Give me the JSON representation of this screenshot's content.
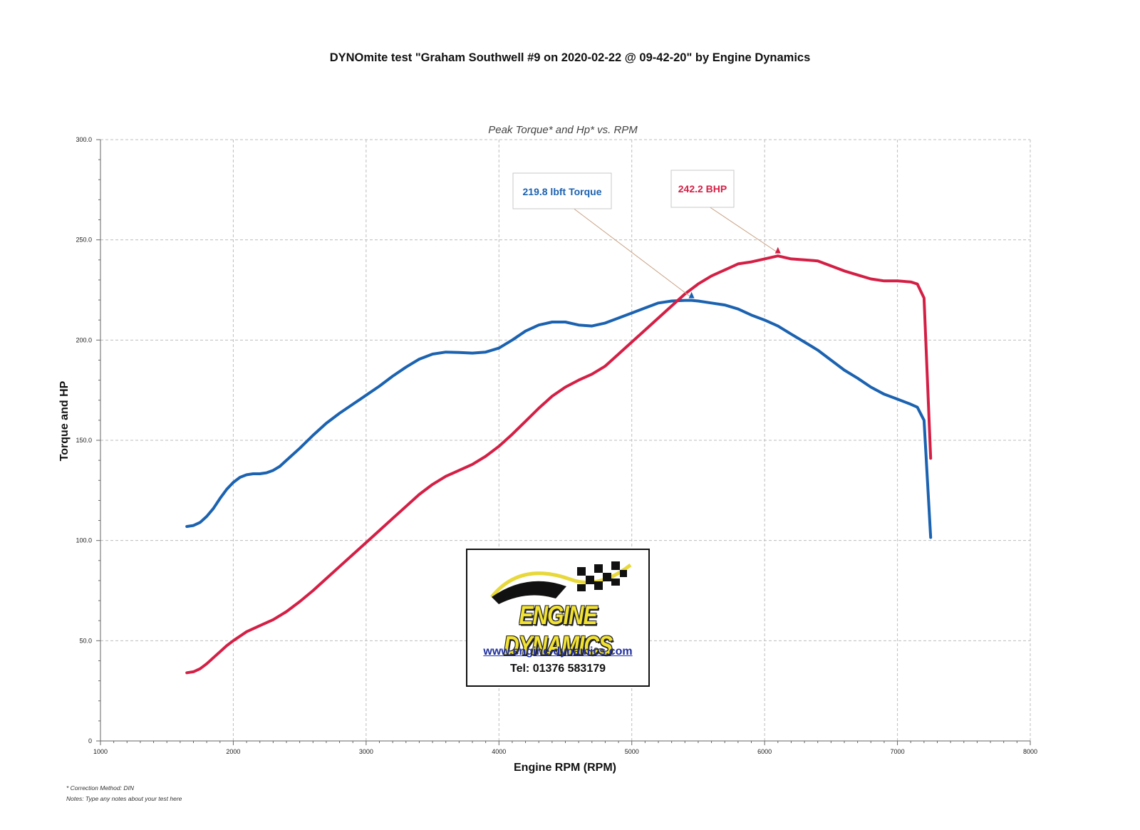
{
  "title": "DYNOmite test \"Graham Southwell #9 on 2020-02-22 @ 09-42-20\" by Engine Dynamics",
  "footnotes": {
    "correction": "* Correction Method: DIN",
    "notes": "Notes: Type any notes about your test here"
  },
  "logo": {
    "name": "ENGINE DYNAMICS",
    "website": "www.engine-dynamics.com",
    "tel": "Tel: 01376 583179"
  },
  "colors": {
    "torque": "#1b62b0",
    "hp": "#d41f45",
    "grid": "#bdbdbd"
  },
  "chart_data": {
    "type": "line",
    "title": "Peak Torque* and Hp* vs. RPM",
    "xlabel": "Engine RPM (RPM)",
    "ylabel": "Torque and HP",
    "xlim": [
      1000,
      8000
    ],
    "ylim": [
      0,
      300
    ],
    "xticks": [
      1000,
      2000,
      3000,
      4000,
      5000,
      6000,
      7000,
      8000
    ],
    "xtick_labels": [
      "1000",
      "2000",
      "3000",
      "4000",
      "5000",
      "6000",
      "7000",
      "8000"
    ],
    "yticks": [
      0,
      50,
      100,
      150,
      200,
      250,
      300
    ],
    "ytick_labels": [
      "0",
      "50.0",
      "100.0",
      "150.0",
      "200.0",
      "250.0",
      "300.0"
    ],
    "grid": true,
    "series": [
      {
        "key": "torque",
        "x": [
          1650,
          1700,
          1750,
          1800,
          1850,
          1900,
          1950,
          2000,
          2050,
          2100,
          2150,
          2200,
          2250,
          2300,
          2350,
          2400,
          2500,
          2600,
          2700,
          2800,
          2900,
          3000,
          3100,
          3200,
          3300,
          3400,
          3500,
          3600,
          3700,
          3800,
          3900,
          4000,
          4100,
          4200,
          4300,
          4400,
          4500,
          4600,
          4700,
          4800,
          4900,
          5000,
          5100,
          5200,
          5300,
          5400,
          5450,
          5500,
          5600,
          5700,
          5800,
          5900,
          6000,
          6100,
          6200,
          6300,
          6400,
          6500,
          6600,
          6700,
          6800,
          6900,
          7000,
          7100,
          7150,
          7200,
          7250
        ],
        "values": [
          107,
          107.5,
          109,
          112,
          116,
          121,
          125.5,
          129,
          131.5,
          132.8,
          133.3,
          133.3,
          133.8,
          135,
          137,
          140,
          146,
          152.5,
          158.5,
          163.5,
          168,
          172.5,
          177,
          182,
          186.5,
          190.5,
          193,
          194,
          193.8,
          193.5,
          194,
          196,
          200,
          204.5,
          207.5,
          209,
          209,
          207.5,
          207,
          208.5,
          211,
          213.5,
          216,
          218.5,
          219.5,
          219.8,
          219.8,
          219.5,
          218.5,
          217.5,
          215.5,
          212.5,
          210,
          207,
          203,
          199,
          195,
          190,
          185,
          181,
          176.5,
          173,
          170.5,
          168,
          166.5,
          160,
          101.5
        ]
      },
      {
        "key": "hp",
        "x": [
          1650,
          1700,
          1750,
          1800,
          1850,
          1900,
          1950,
          2000,
          2100,
          2200,
          2300,
          2400,
          2500,
          2600,
          2700,
          2800,
          2900,
          3000,
          3100,
          3200,
          3300,
          3400,
          3500,
          3600,
          3700,
          3800,
          3900,
          4000,
          4100,
          4200,
          4300,
          4400,
          4500,
          4600,
          4700,
          4800,
          4900,
          5000,
          5100,
          5200,
          5300,
          5400,
          5500,
          5600,
          5700,
          5800,
          5900,
          6000,
          6100,
          6200,
          6300,
          6400,
          6500,
          6600,
          6700,
          6800,
          6900,
          7000,
          7100,
          7150,
          7200,
          7250
        ],
        "values": [
          34,
          34.5,
          36,
          38.5,
          41.5,
          44.5,
          47.5,
          50,
          54.5,
          57.5,
          60.5,
          64.5,
          69.5,
          75,
          81,
          87,
          93,
          99,
          105,
          111,
          117,
          123,
          128,
          132,
          135,
          138,
          142,
          147,
          153,
          159.5,
          166,
          172,
          176.5,
          180,
          183,
          187,
          193,
          199,
          205,
          211,
          217,
          223,
          228,
          232,
          235,
          238,
          239,
          240.5,
          242,
          240.5,
          240,
          239.5,
          237,
          234.5,
          232.5,
          230.5,
          229.5,
          229.5,
          229,
          228,
          221,
          141
        ]
      }
    ],
    "annotations": [
      {
        "text": "219.8 lbft Torque",
        "series": "torque",
        "x": 5450,
        "y": 219.8
      },
      {
        "text": "242.2 BHP",
        "series": "hp",
        "x": 6100,
        "y": 242.2
      }
    ]
  }
}
